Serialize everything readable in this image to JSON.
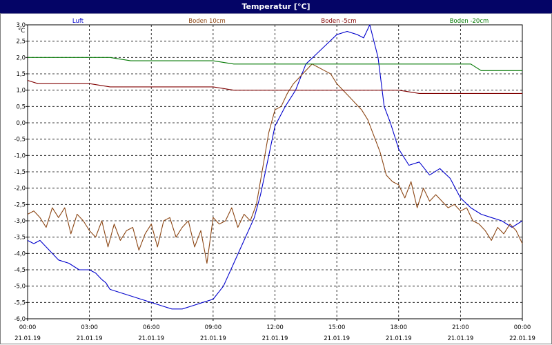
{
  "window": {
    "title": "Temperatur [°C]"
  },
  "chart_data": {
    "type": "line",
    "title": "Temperatur [°C]",
    "ylabel": "°C",
    "xlabel": "",
    "grid": true,
    "legend_placement": "top",
    "ylim": [
      -6.0,
      3.0
    ],
    "y_ticks": [
      "3,0",
      "2,5",
      "2,0",
      "1,5",
      "1,0",
      "0,5",
      "0,0",
      "-0,5",
      "-1,0",
      "-1,5",
      "-2,0",
      "-2,5",
      "-3,0",
      "-3,5",
      "-4,0",
      "-4,5",
      "-5,0",
      "-5,5",
      "-6,0"
    ],
    "xlim_hours": [
      0,
      24
    ],
    "x_ticks": [
      {
        "time": "00:00",
        "date": "21.01.19"
      },
      {
        "time": "03:00",
        "date": "21.01.19"
      },
      {
        "time": "06:00",
        "date": "21.01.19"
      },
      {
        "time": "09:00",
        "date": "21.01.19"
      },
      {
        "time": "12:00",
        "date": "21.01.19"
      },
      {
        "time": "15:00",
        "date": "21.01.19"
      },
      {
        "time": "18:00",
        "date": "21.01.19"
      },
      {
        "time": "21:00",
        "date": "21.01.19"
      },
      {
        "time": "00:00",
        "date": "22.01.19"
      }
    ],
    "series": [
      {
        "name": "Luft",
        "color": "#0000cc",
        "x": [
          0,
          0.3,
          0.6,
          0.9,
          1.2,
          1.5,
          2,
          2.5,
          3,
          3.3,
          3.6,
          3.8,
          4,
          4.5,
          5,
          5.5,
          6,
          6.5,
          7,
          7.5,
          8,
          8.5,
          9,
          9.5,
          10,
          10.5,
          11,
          11.3,
          11.6,
          12,
          12.5,
          13,
          13.5,
          14,
          14.5,
          15,
          15.5,
          16,
          16.3,
          16.6,
          17,
          17.3,
          17.6,
          18,
          18.5,
          19,
          19.5,
          20,
          20.5,
          21,
          21.5,
          22,
          22.5,
          23,
          23.5,
          24
        ],
        "y": [
          -3.6,
          -3.7,
          -3.6,
          -3.8,
          -4.0,
          -4.2,
          -4.3,
          -4.5,
          -4.5,
          -4.6,
          -4.8,
          -4.9,
          -5.1,
          -5.2,
          -5.3,
          -5.4,
          -5.5,
          -5.6,
          -5.7,
          -5.7,
          -5.6,
          -5.5,
          -5.4,
          -5.0,
          -4.3,
          -3.6,
          -2.9,
          -2.2,
          -1.3,
          -0.1,
          0.5,
          1.0,
          1.8,
          2.1,
          2.4,
          2.7,
          2.8,
          2.7,
          2.6,
          3.0,
          2.0,
          0.5,
          0.0,
          -0.8,
          -1.3,
          -1.2,
          -1.6,
          -1.4,
          -1.7,
          -2.3,
          -2.6,
          -2.8,
          -2.9,
          -3.0,
          -3.2,
          -3.0
        ]
      },
      {
        "name": "Boden 10cm",
        "color": "#8b4513",
        "x": [
          0,
          0.3,
          0.6,
          0.9,
          1.2,
          1.5,
          1.8,
          2.1,
          2.4,
          2.7,
          3,
          3.3,
          3.6,
          3.9,
          4.2,
          4.5,
          4.8,
          5.1,
          5.4,
          5.7,
          6,
          6.3,
          6.6,
          6.9,
          7.2,
          7.5,
          7.8,
          8.1,
          8.4,
          8.7,
          9,
          9.3,
          9.6,
          9.9,
          10.2,
          10.5,
          10.8,
          11.1,
          11.4,
          11.7,
          12,
          12.3,
          12.6,
          12.9,
          13.2,
          13.5,
          13.8,
          14.1,
          14.4,
          14.7,
          15,
          15.3,
          15.6,
          15.9,
          16.2,
          16.5,
          16.8,
          17.1,
          17.4,
          17.7,
          18,
          18.3,
          18.6,
          18.9,
          19.2,
          19.5,
          19.8,
          20.1,
          20.4,
          20.7,
          21,
          21.3,
          21.6,
          21.9,
          22.2,
          22.5,
          22.8,
          23.1,
          23.4,
          23.7,
          24
        ],
        "y": [
          -2.8,
          -2.7,
          -2.9,
          -3.2,
          -2.6,
          -2.9,
          -2.6,
          -3.4,
          -2.8,
          -3.0,
          -3.3,
          -3.5,
          -3.0,
          -3.8,
          -3.1,
          -3.6,
          -3.3,
          -3.2,
          -3.9,
          -3.4,
          -3.1,
          -3.8,
          -3.0,
          -2.9,
          -3.5,
          -3.2,
          -3.0,
          -3.8,
          -3.3,
          -4.3,
          -2.9,
          -3.1,
          -3.0,
          -2.6,
          -3.2,
          -2.8,
          -3.0,
          -2.5,
          -1.4,
          -0.3,
          0.4,
          0.5,
          0.9,
          1.2,
          1.4,
          1.6,
          1.8,
          1.7,
          1.6,
          1.5,
          1.2,
          1.0,
          0.8,
          0.6,
          0.4,
          0.1,
          -0.4,
          -0.9,
          -1.6,
          -1.8,
          -1.9,
          -2.3,
          -1.8,
          -2.6,
          -2.0,
          -2.4,
          -2.2,
          -2.4,
          -2.6,
          -2.5,
          -2.7,
          -2.6,
          -3.0,
          -3.1,
          -3.3,
          -3.6,
          -3.2,
          -3.4,
          -3.1,
          -3.3,
          -3.7
        ]
      },
      {
        "name": "Boden -5cm",
        "color": "#800000",
        "x": [
          0,
          0.5,
          3,
          4,
          9,
          10,
          18,
          19,
          24
        ],
        "y": [
          1.3,
          1.2,
          1.2,
          1.1,
          1.1,
          1.0,
          1.0,
          0.9,
          0.9
        ]
      },
      {
        "name": "Boden -20cm",
        "color": "#007700",
        "x": [
          0,
          4,
          5,
          9,
          10,
          21.5,
          22,
          24
        ],
        "y": [
          2.0,
          2.0,
          1.9,
          1.9,
          1.8,
          1.8,
          1.6,
          1.6
        ]
      }
    ]
  }
}
